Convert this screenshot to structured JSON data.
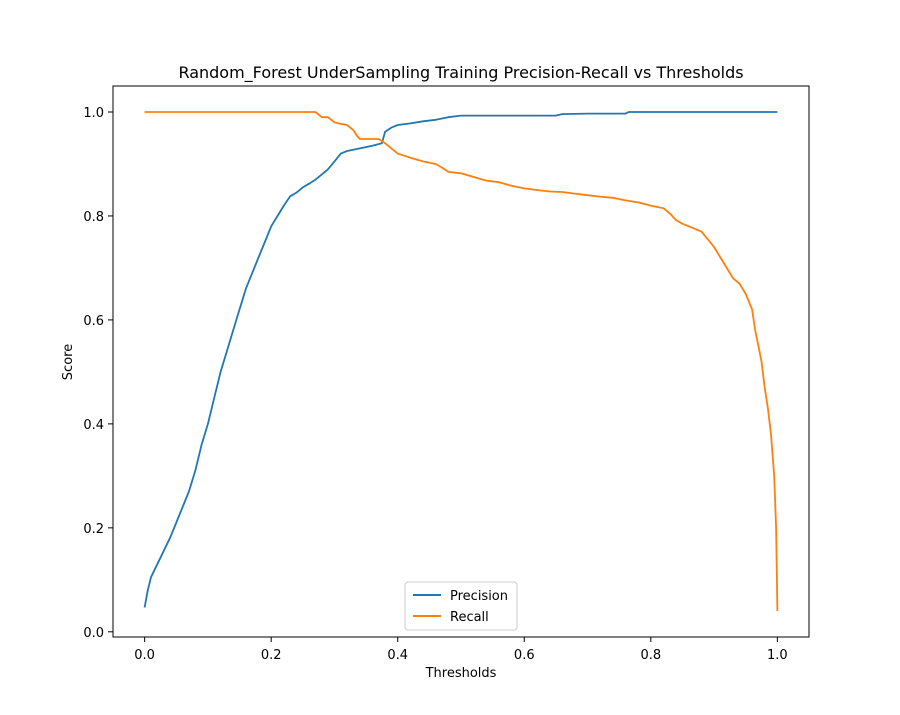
{
  "chart_data": {
    "type": "line",
    "title": "Random_Forest UnderSampling Training Precision-Recall vs Thresholds",
    "xlabel": "Thresholds",
    "ylabel": "Score",
    "xlim": [
      -0.05,
      1.05
    ],
    "ylim": [
      -0.01,
      1.05
    ],
    "xticks": [
      0.0,
      0.2,
      0.4,
      0.6,
      0.8,
      1.0
    ],
    "xtick_labels": [
      "0.0",
      "0.2",
      "0.4",
      "0.6",
      "0.8",
      "1.0"
    ],
    "yticks": [
      0.0,
      0.2,
      0.4,
      0.6,
      0.8,
      1.0
    ],
    "ytick_labels": [
      "0.0",
      "0.2",
      "0.4",
      "0.6",
      "0.8",
      "1.0"
    ],
    "grid": false,
    "legend": {
      "placement": "lower-center",
      "entries": [
        "Precision",
        "Recall"
      ]
    },
    "series": [
      {
        "name": "Precision",
        "color": "#1f77b4",
        "points": [
          [
            0.0,
            0.047
          ],
          [
            0.005,
            0.08
          ],
          [
            0.01,
            0.105
          ],
          [
            0.02,
            0.13
          ],
          [
            0.03,
            0.155
          ],
          [
            0.04,
            0.18
          ],
          [
            0.05,
            0.21
          ],
          [
            0.06,
            0.24
          ],
          [
            0.07,
            0.27
          ],
          [
            0.08,
            0.31
          ],
          [
            0.09,
            0.36
          ],
          [
            0.1,
            0.4
          ],
          [
            0.11,
            0.45
          ],
          [
            0.12,
            0.5
          ],
          [
            0.13,
            0.54
          ],
          [
            0.14,
            0.58
          ],
          [
            0.15,
            0.62
          ],
          [
            0.16,
            0.66
          ],
          [
            0.17,
            0.69
          ],
          [
            0.18,
            0.72
          ],
          [
            0.19,
            0.75
          ],
          [
            0.2,
            0.78
          ],
          [
            0.21,
            0.8
          ],
          [
            0.22,
            0.82
          ],
          [
            0.23,
            0.838
          ],
          [
            0.24,
            0.845
          ],
          [
            0.25,
            0.855
          ],
          [
            0.26,
            0.862
          ],
          [
            0.27,
            0.87
          ],
          [
            0.28,
            0.88
          ],
          [
            0.29,
            0.89
          ],
          [
            0.3,
            0.905
          ],
          [
            0.31,
            0.92
          ],
          [
            0.32,
            0.925
          ],
          [
            0.34,
            0.93
          ],
          [
            0.36,
            0.935
          ],
          [
            0.375,
            0.94
          ],
          [
            0.38,
            0.962
          ],
          [
            0.39,
            0.97
          ],
          [
            0.4,
            0.975
          ],
          [
            0.42,
            0.978
          ],
          [
            0.44,
            0.982
          ],
          [
            0.46,
            0.985
          ],
          [
            0.48,
            0.99
          ],
          [
            0.5,
            0.993
          ],
          [
            0.55,
            0.993
          ],
          [
            0.6,
            0.993
          ],
          [
            0.65,
            0.993
          ],
          [
            0.66,
            0.996
          ],
          [
            0.7,
            0.997
          ],
          [
            0.76,
            0.997
          ],
          [
            0.765,
            1.0
          ],
          [
            0.8,
            1.0
          ],
          [
            0.9,
            1.0
          ],
          [
            1.0,
            1.0
          ]
        ]
      },
      {
        "name": "Recall",
        "color": "#ff7f0e",
        "points": [
          [
            0.0,
            1.0
          ],
          [
            0.1,
            1.0
          ],
          [
            0.2,
            1.0
          ],
          [
            0.27,
            1.0
          ],
          [
            0.275,
            0.995
          ],
          [
            0.28,
            0.99
          ],
          [
            0.29,
            0.99
          ],
          [
            0.3,
            0.98
          ],
          [
            0.31,
            0.977
          ],
          [
            0.32,
            0.975
          ],
          [
            0.33,
            0.965
          ],
          [
            0.335,
            0.955
          ],
          [
            0.34,
            0.948
          ],
          [
            0.36,
            0.948
          ],
          [
            0.37,
            0.948
          ],
          [
            0.38,
            0.94
          ],
          [
            0.39,
            0.93
          ],
          [
            0.4,
            0.92
          ],
          [
            0.42,
            0.912
          ],
          [
            0.44,
            0.905
          ],
          [
            0.46,
            0.9
          ],
          [
            0.47,
            0.893
          ],
          [
            0.48,
            0.885
          ],
          [
            0.5,
            0.882
          ],
          [
            0.52,
            0.875
          ],
          [
            0.54,
            0.868
          ],
          [
            0.56,
            0.865
          ],
          [
            0.58,
            0.858
          ],
          [
            0.6,
            0.853
          ],
          [
            0.62,
            0.85
          ],
          [
            0.64,
            0.847
          ],
          [
            0.66,
            0.846
          ],
          [
            0.68,
            0.843
          ],
          [
            0.7,
            0.84
          ],
          [
            0.72,
            0.837
          ],
          [
            0.74,
            0.835
          ],
          [
            0.76,
            0.83
          ],
          [
            0.78,
            0.826
          ],
          [
            0.8,
            0.82
          ],
          [
            0.82,
            0.815
          ],
          [
            0.83,
            0.805
          ],
          [
            0.84,
            0.792
          ],
          [
            0.85,
            0.785
          ],
          [
            0.86,
            0.78
          ],
          [
            0.87,
            0.775
          ],
          [
            0.88,
            0.77
          ],
          [
            0.89,
            0.755
          ],
          [
            0.9,
            0.74
          ],
          [
            0.91,
            0.72
          ],
          [
            0.92,
            0.7
          ],
          [
            0.93,
            0.68
          ],
          [
            0.94,
            0.67
          ],
          [
            0.95,
            0.65
          ],
          [
            0.96,
            0.62
          ],
          [
            0.965,
            0.58
          ],
          [
            0.97,
            0.55
          ],
          [
            0.975,
            0.52
          ],
          [
            0.98,
            0.47
          ],
          [
            0.985,
            0.43
          ],
          [
            0.99,
            0.38
          ],
          [
            0.995,
            0.3
          ],
          [
            0.998,
            0.2
          ],
          [
            1.0,
            0.04
          ]
        ]
      }
    ]
  }
}
